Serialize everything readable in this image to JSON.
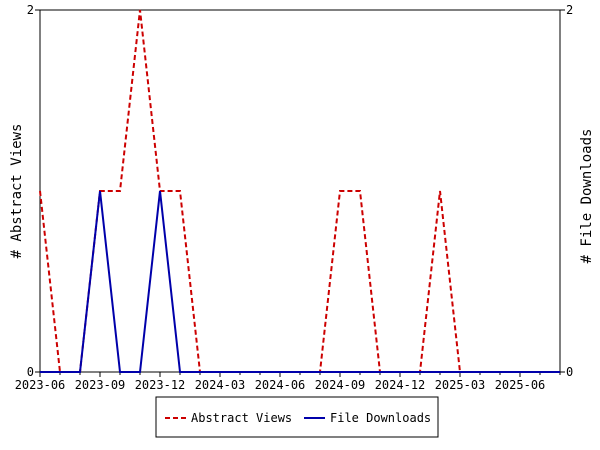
{
  "chart_data": {
    "type": "line",
    "x": [
      "2023-06",
      "2023-07",
      "2023-08",
      "2023-09",
      "2023-10",
      "2023-11",
      "2023-12",
      "2024-01",
      "2024-02",
      "2024-03",
      "2024-04",
      "2024-05",
      "2024-06",
      "2024-07",
      "2024-08",
      "2024-09",
      "2024-10",
      "2024-11",
      "2024-12",
      "2025-01",
      "2025-02",
      "2025-03",
      "2025-04",
      "2025-05",
      "2025-06",
      "2025-07",
      "2025-08"
    ],
    "x_ticks": [
      "2023-06",
      "2023-09",
      "2023-12",
      "2024-03",
      "2024-06",
      "2024-09",
      "2024-12",
      "2025-03",
      "2025-06"
    ],
    "series": [
      {
        "name": "Abstract Views",
        "color": "#cc0000",
        "style": "dashed",
        "axis": "left",
        "values": [
          1,
          0,
          0,
          1,
          1,
          2,
          1,
          1,
          0,
          0,
          0,
          0,
          0,
          0,
          0,
          1,
          1,
          0,
          0,
          0,
          1,
          0,
          0,
          0,
          0,
          0,
          0
        ]
      },
      {
        "name": "File Downloads",
        "color": "#0000aa",
        "style": "solid",
        "axis": "right",
        "values": [
          0,
          0,
          0,
          1,
          0,
          0,
          1,
          0,
          0,
          0,
          0,
          0,
          0,
          0,
          0,
          0,
          0,
          0,
          0,
          0,
          0,
          0,
          0,
          0,
          0,
          0,
          0
        ]
      }
    ],
    "ylabel_left": "# Abstract Views",
    "ylabel_right": "# File Downloads",
    "ylim": [
      0,
      2
    ],
    "y_ticks_left": [
      "0",
      "2"
    ],
    "y_ticks_right": [
      "0",
      "2"
    ],
    "grid": false,
    "legend_position": "bottom-center"
  }
}
